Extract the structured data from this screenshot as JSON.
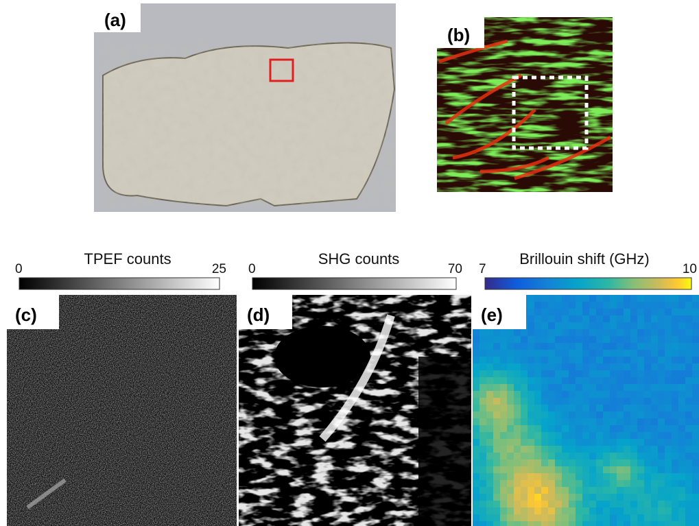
{
  "panel_labels": [
    "(a)",
    "(b)",
    "(c)",
    "(d)",
    "(e)"
  ],
  "colorbars": [
    {
      "title": "TPEF counts",
      "min": 0,
      "max": 25
    },
    {
      "title": "SHG counts",
      "min": 0,
      "max": 70
    },
    {
      "title": "Brillouin shift (GHz)",
      "min": 7,
      "max": 10
    }
  ]
}
